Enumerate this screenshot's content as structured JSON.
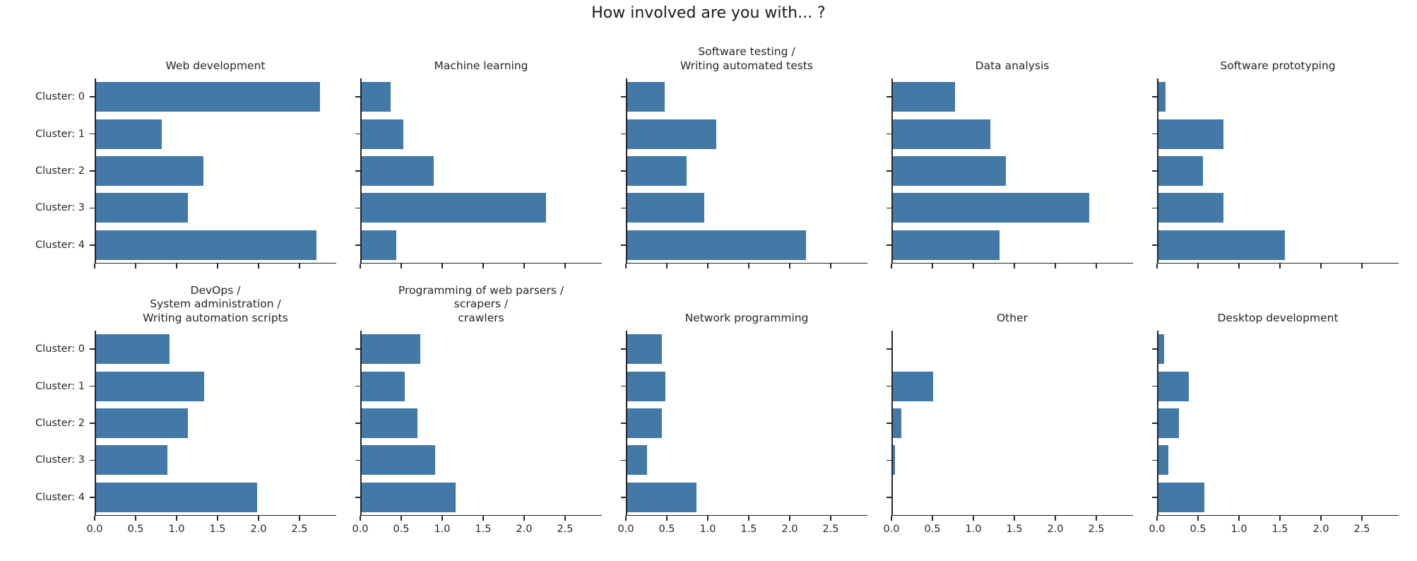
{
  "title": "How involved are you with... ?",
  "colors": {
    "bar": "#4379a7",
    "spine": "#262626",
    "text": "#262626"
  },
  "chart_data": {
    "type": "bar",
    "orientation": "horizontal",
    "title": "How involved are you with... ?",
    "grid": {
      "rows": 2,
      "cols": 5
    },
    "categories": [
      "Cluster: 0",
      "Cluster: 1",
      "Cluster: 2",
      "Cluster: 3",
      "Cluster: 4"
    ],
    "x_ticks": [
      0.0,
      0.5,
      1.0,
      1.5,
      2.0,
      2.5
    ],
    "x_tick_labels": [
      "0.0",
      "0.5",
      "1.0",
      "1.5",
      "2.0",
      "2.5"
    ],
    "xlim": [
      0,
      2.95
    ],
    "x_tick_labels_visible_rows": [
      1
    ],
    "legend": "none",
    "subplots": [
      {
        "title_lines": [
          "Web development"
        ],
        "values": [
          2.75,
          0.82,
          1.33,
          1.14,
          2.71
        ]
      },
      {
        "title_lines": [
          "Machine learning"
        ],
        "values": [
          0.37,
          0.53,
          0.9,
          2.27,
          0.44
        ]
      },
      {
        "title_lines": [
          "Software testing /",
          "Writing automated tests"
        ],
        "values": [
          0.47,
          1.1,
          0.74,
          0.96,
          2.2
        ]
      },
      {
        "title_lines": [
          "Data analysis"
        ],
        "values": [
          0.78,
          1.21,
          1.4,
          2.41,
          1.32
        ]
      },
      {
        "title_lines": [
          "Software prototyping"
        ],
        "values": [
          0.1,
          0.81,
          0.56,
          0.81,
          1.56
        ]
      },
      {
        "title_lines": [
          "DevOps /",
          "System administration /",
          "Writing automation scripts"
        ],
        "values": [
          0.91,
          1.34,
          1.14,
          0.89,
          1.98
        ]
      },
      {
        "title_lines": [
          "Programming of web parsers /",
          "scrapers /",
          "crawlers"
        ],
        "values": [
          0.73,
          0.54,
          0.7,
          0.91,
          1.16
        ]
      },
      {
        "title_lines": [
          "Network programming"
        ],
        "values": [
          0.44,
          0.48,
          0.44,
          0.26,
          0.86
        ]
      },
      {
        "title_lines": [
          "Other"
        ],
        "values": [
          0.0,
          0.51,
          0.12,
          0.04,
          0.0
        ]
      },
      {
        "title_lines": [
          "Desktop development"
        ],
        "values": [
          0.09,
          0.39,
          0.27,
          0.14,
          0.58
        ]
      }
    ]
  }
}
